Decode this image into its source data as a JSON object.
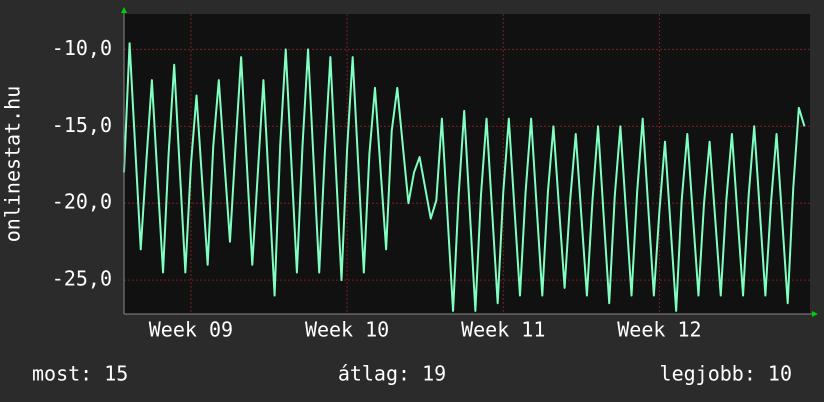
{
  "chart_data": {
    "type": "line",
    "y_label": "onlinestat.hu",
    "x": [
      0,
      0.25,
      0.5,
      0.75,
      1,
      1.25,
      1.5,
      1.75,
      2,
      2.25,
      2.5,
      2.75,
      3,
      3.25,
      3.5,
      3.75,
      4,
      4.25,
      4.5,
      4.75,
      5,
      5.25,
      5.5,
      5.75,
      6,
      6.25,
      6.5,
      6.75,
      7,
      7.25,
      7.5,
      7.75,
      8,
      8.25,
      8.5,
      8.75,
      9,
      9.25,
      9.5,
      9.75,
      10,
      10.25,
      10.5,
      10.75,
      11,
      11.25,
      11.5,
      11.75,
      12,
      12.25,
      12.5,
      12.75,
      13,
      13.25,
      13.5,
      13.75,
      14,
      14.25,
      14.5,
      14.75,
      15,
      15.25,
      15.5,
      15.75,
      16,
      16.25,
      16.5,
      16.75,
      17,
      17.25,
      17.5,
      17.75,
      18,
      18.25,
      18.5,
      18.75,
      19,
      19.25,
      19.5,
      19.75,
      20,
      20.25,
      20.5,
      20.75,
      21,
      21.25,
      21.5,
      21.75,
      22,
      22.25,
      22.5,
      22.75,
      23,
      23.25,
      23.5,
      23.75,
      24,
      24.25,
      24.5,
      24.75,
      25,
      25.25,
      25.5,
      25.75,
      26,
      26.25,
      26.5,
      26.75,
      27,
      27.25,
      27.5,
      27.75,
      28,
      28.25,
      28.5,
      28.75,
      29,
      29.25,
      29.5,
      29.75,
      30,
      30.25,
      30.5
    ],
    "series": [
      {
        "name": "onlinestat.hu",
        "color": "#80ffc0",
        "values": [
          -18,
          -9.6,
          -16.3,
          -23,
          -17.3,
          -12,
          -18.3,
          -24.5,
          -16.8,
          -11,
          -17.8,
          -24.5,
          -17.5,
          -13,
          -18.5,
          -24,
          -16.3,
          -12,
          -17.3,
          -22.5,
          -16.3,
          -10.5,
          -17.3,
          -24,
          -18,
          -12,
          -19,
          -26,
          -16.3,
          -10,
          -17.3,
          -24.5,
          -16.3,
          -10,
          -17.3,
          -24.5,
          -16.8,
          -10.5,
          -17.8,
          -25,
          -16.5,
          -10.5,
          -17.5,
          -24.5,
          -16.8,
          -12.5,
          -17.8,
          -23,
          -15.3,
          -12.5,
          -16.3,
          -20,
          -18,
          -17,
          -19,
          -21,
          -19.8,
          -14.5,
          -20.8,
          -27,
          -19.5,
          -14,
          -20.5,
          -27,
          -19.5,
          -14.5,
          -20.5,
          -26.5,
          -19.3,
          -14.5,
          -20.3,
          -26,
          -19.3,
          -14.5,
          -20.3,
          -26,
          -19.3,
          -15,
          -20.3,
          -25.5,
          -19.8,
          -15.5,
          -20.8,
          -26,
          -19.8,
          -15,
          -20.8,
          -26.5,
          -19.5,
          -15,
          -20.5,
          -26,
          -19.3,
          -14.5,
          -20.3,
          -26,
          -20.5,
          -16,
          -21.5,
          -27,
          -19.8,
          -15.5,
          -20.8,
          -26,
          -20,
          -16,
          -21,
          -26,
          -19.8,
          -15.5,
          -20.8,
          -26,
          -19.5,
          -15,
          -20.5,
          -26,
          -20,
          -15.5,
          -21,
          -26.5,
          -19,
          -13.8,
          -15
        ]
      }
    ],
    "xlim": [
      0,
      30.75
    ],
    "xticks": [
      {
        "value": 3,
        "label": "Week 09"
      },
      {
        "value": 10,
        "label": "Week 10"
      },
      {
        "value": 17,
        "label": "Week 11"
      },
      {
        "value": 24,
        "label": "Week 12"
      }
    ],
    "ylim": [
      -27.2,
      -7.7
    ],
    "yticks": [
      {
        "value": -10,
        "label": "-10,0"
      },
      {
        "value": -15,
        "label": "-15,0"
      },
      {
        "value": -20,
        "label": "-20,0"
      },
      {
        "value": -25,
        "label": "-25,0"
      }
    ],
    "grid": true
  },
  "footer": {
    "current": "most: 15",
    "average": "átlag: 19",
    "best": "legjobb: 10"
  }
}
